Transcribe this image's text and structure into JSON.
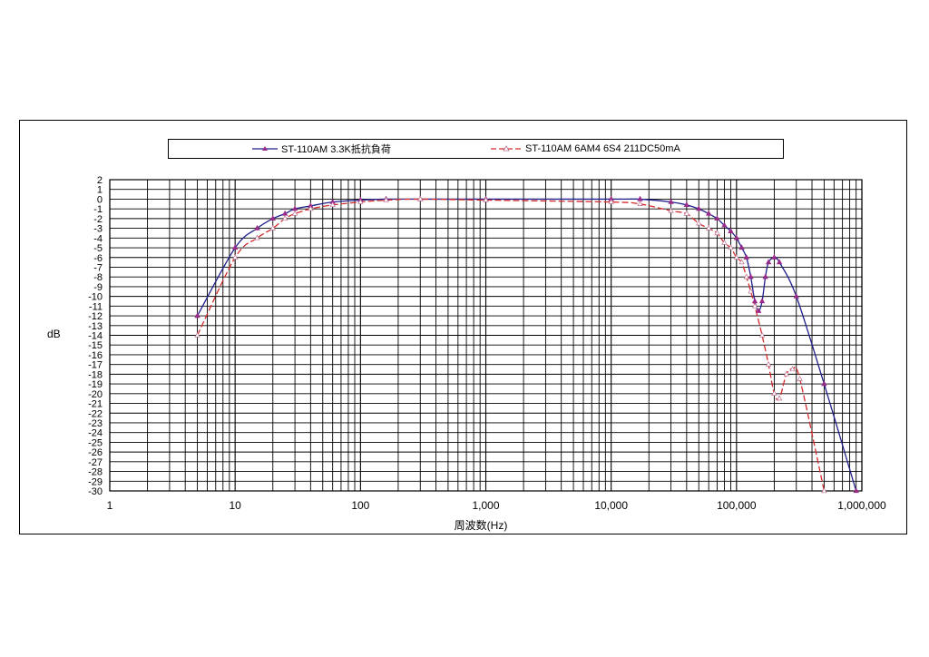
{
  "chart_data": {
    "type": "line",
    "title": "",
    "xlabel": "周波数(Hz)",
    "ylabel": "dB",
    "x_scale": "log",
    "xlim": [
      1,
      1000000
    ],
    "ylim": [
      -30,
      2
    ],
    "grid": true,
    "legend_position": "top",
    "x_tick_labels": [
      "1",
      "10",
      "100",
      "1,000",
      "10,000",
      "100,000",
      "1,000,000"
    ],
    "y_tick_labels": [
      "2",
      "1",
      "0",
      "-1",
      "-2",
      "-3",
      "-4",
      "-5",
      "-6",
      "-7",
      "-8",
      "-9",
      "-10",
      "-11",
      "-12",
      "-13",
      "-14",
      "-15",
      "-16",
      "-17",
      "-18",
      "-19",
      "-20",
      "-21",
      "-22",
      "-23",
      "-24",
      "-25",
      "-26",
      "-27",
      "-28",
      "-29",
      "-30"
    ],
    "series": [
      {
        "name": "ST-110AM 3.3K抵抗負荷",
        "color": "#1f1f8c",
        "marker": "triangle",
        "points": [
          [
            5,
            -12
          ],
          [
            10,
            -5
          ],
          [
            15,
            -3
          ],
          [
            20,
            -2
          ],
          [
            25,
            -1.5
          ],
          [
            30,
            -1
          ],
          [
            40,
            -0.7
          ],
          [
            60,
            -0.3
          ],
          [
            100,
            -0.1
          ],
          [
            160,
            0
          ],
          [
            300,
            0
          ],
          [
            1000,
            0
          ],
          [
            10000,
            0
          ],
          [
            17000,
            0
          ],
          [
            30000,
            -0.3
          ],
          [
            40000,
            -0.6
          ],
          [
            50000,
            -1
          ],
          [
            60000,
            -1.5
          ],
          [
            70000,
            -2
          ],
          [
            80000,
            -2.7
          ],
          [
            90000,
            -3.3
          ],
          [
            100000,
            -4
          ],
          [
            110000,
            -5
          ],
          [
            120000,
            -6
          ],
          [
            130000,
            -8
          ],
          [
            140000,
            -10.5
          ],
          [
            150000,
            -11.5
          ],
          [
            160000,
            -10.5
          ],
          [
            170000,
            -8
          ],
          [
            180000,
            -6.5
          ],
          [
            200000,
            -6
          ],
          [
            220000,
            -6.5
          ],
          [
            300000,
            -10
          ],
          [
            500000,
            -19
          ],
          [
            900000,
            -30
          ]
        ]
      },
      {
        "name": "ST-110AM 6AM4 6S4 211DC50mA",
        "color": "#d42a2a",
        "marker": "triangle",
        "points": [
          [
            5,
            -14
          ],
          [
            10,
            -6
          ],
          [
            15,
            -4
          ],
          [
            20,
            -3
          ],
          [
            25,
            -2
          ],
          [
            30,
            -1.5
          ],
          [
            40,
            -1
          ],
          [
            60,
            -0.6
          ],
          [
            100,
            -0.3
          ],
          [
            160,
            -0.1
          ],
          [
            300,
            0
          ],
          [
            1000,
            -0.1
          ],
          [
            10000,
            -0.3
          ],
          [
            17000,
            -0.5
          ],
          [
            30000,
            -1.2
          ],
          [
            40000,
            -1.5
          ],
          [
            50000,
            -2.5
          ],
          [
            60000,
            -3
          ],
          [
            70000,
            -3.5
          ],
          [
            80000,
            -4.5
          ],
          [
            90000,
            -5
          ],
          [
            100000,
            -6
          ],
          [
            110000,
            -6.5
          ],
          [
            120000,
            -8
          ],
          [
            130000,
            -9.5
          ],
          [
            140000,
            -11
          ],
          [
            160000,
            -14
          ],
          [
            180000,
            -17
          ],
          [
            200000,
            -20
          ],
          [
            220000,
            -20.5
          ],
          [
            250000,
            -18
          ],
          [
            280000,
            -17.5
          ],
          [
            320000,
            -18.5
          ],
          [
            500000,
            -30
          ]
        ]
      }
    ]
  }
}
